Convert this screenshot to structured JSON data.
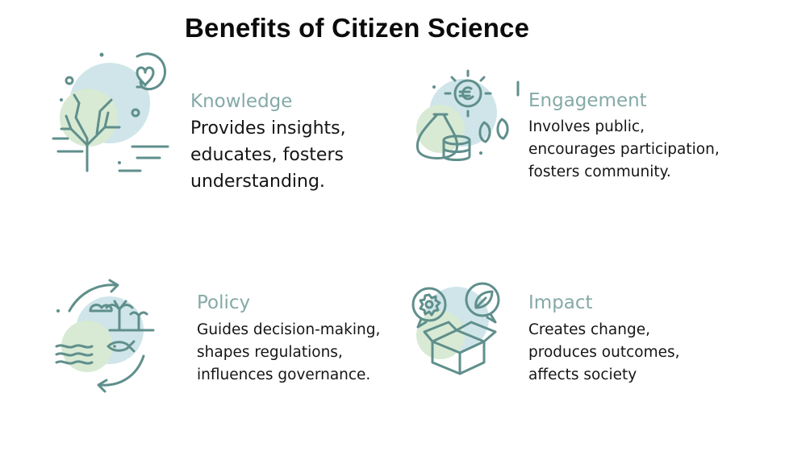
{
  "page": {
    "title": "Benefits of Citizen Science"
  },
  "colors": {
    "heading": "#84aaa6",
    "icon_stroke": "#5f8f8c",
    "blob_green": "#d8ead4",
    "blob_blue": "#cfe5e9"
  },
  "cards": [
    {
      "icon": "tree-heart-icon",
      "heading": "Knowledge",
      "description": "Provides insights,\neducates, fosters\nunderstanding."
    },
    {
      "icon": "money-growth-icon",
      "heading": "Engagement",
      "description": "Involves public,\nencourages participation,\nfosters community."
    },
    {
      "icon": "nature-cycle-icon",
      "heading": "Policy",
      "description": "Guides decision-making,\nshapes regulations,\ninfluences governance."
    },
    {
      "icon": "open-box-icon",
      "heading": "Impact",
      "description": "Creates change,\nproduces outcomes,\naffects society"
    }
  ]
}
